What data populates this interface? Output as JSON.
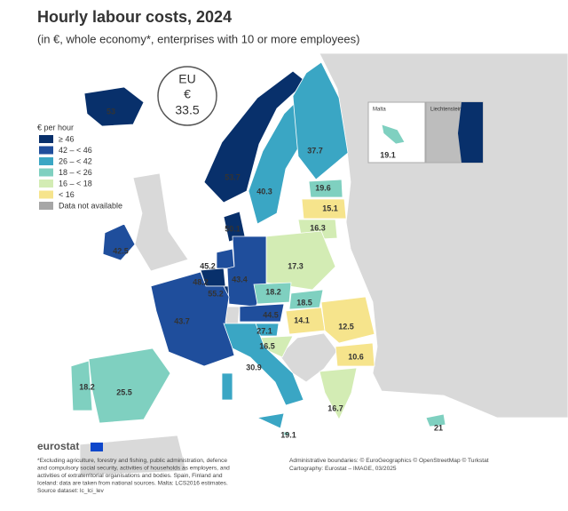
{
  "header": {
    "title": "Hourly labour costs, 2024",
    "subtitle": "(in €, whole economy*, enterprises with 10 or more employees)"
  },
  "eu_average": {
    "label": "EU",
    "currency": "€",
    "value": "33.5"
  },
  "legend": {
    "title": "€ per hour",
    "items": [
      {
        "label": "≥ 46",
        "min": 46,
        "color": "#08306b"
      },
      {
        "label": "42 – < 46",
        "min": 42,
        "color": "#1f4e9c"
      },
      {
        "label": "26 – < 42",
        "min": 26,
        "color": "#3aa6c4"
      },
      {
        "label": "18 – < 26",
        "min": 18,
        "color": "#7fd0c0"
      },
      {
        "label": "16 – < 18",
        "min": 16,
        "color": "#d3ecb4"
      },
      {
        "label": "< 16",
        "color": "#f6e48c"
      },
      {
        "label": "Data not available",
        "color": "#a6a6a6"
      }
    ]
  },
  "map": {
    "values": [
      53,
      53.7,
      40.3,
      37.7,
      42.5,
      50.1,
      19.6,
      15.1,
      16.3,
      45.2,
      48.2,
      55.2,
      43.4,
      17.3,
      18.2,
      18.5,
      43.7,
      44.5,
      14.1,
      12.5,
      27.1,
      16.5,
      30.9,
      10.6,
      18.2,
      25.5,
      16.7,
      21,
      19.1,
      19.1
    ]
  },
  "insets": [
    "Malta",
    "Liechtenstein"
  ],
  "footer": {
    "brand": "eurostat",
    "notes": [
      "*Excluding agriculture, forestry and fishing, public administration, defence",
      "and compulsory social security, activities of households as employers, and",
      "activities of extraterritorial organisations and bodies. Spain, Finland and",
      "Iceland: data are taken from national sources. Malta: LCS2016 estimates.",
      "Source dataset: lc_lci_lev"
    ],
    "credits": [
      "Administrative boundaries: © EuroGeographics © OpenStreetMap © Turkstat",
      "Cartography: Eurostat – IMAGE, 03/2025"
    ]
  }
}
